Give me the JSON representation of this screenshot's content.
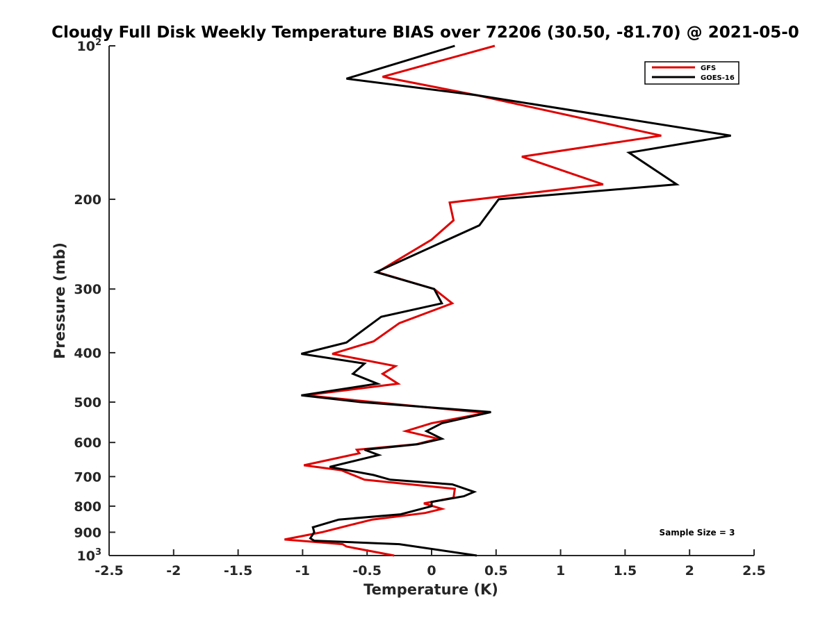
{
  "chart_data": {
    "type": "line",
    "title": "Cloudy Full Disk Weekly Temperature BIAS over 72206 (30.50, -81.70) @ 2021-05-0",
    "xlabel": "Temperature (K)",
    "ylabel": "Pressure (mb)",
    "xlim": [
      -2.5,
      2.5
    ],
    "ylim": [
      100,
      1000
    ],
    "y_scale": "log",
    "y_reversed": true,
    "grid": false,
    "legend_position": "top-right",
    "x_ticks": [
      {
        "value": -2.5,
        "label": "-2.5"
      },
      {
        "value": -2,
        "label": "-2"
      },
      {
        "value": -1.5,
        "label": "-1.5"
      },
      {
        "value": -1,
        "label": "-1"
      },
      {
        "value": -0.5,
        "label": "-0.5"
      },
      {
        "value": 0,
        "label": "0"
      },
      {
        "value": 0.5,
        "label": "0.5"
      },
      {
        "value": 1,
        "label": "1"
      },
      {
        "value": 1.5,
        "label": "1.5"
      },
      {
        "value": 2,
        "label": "2"
      },
      {
        "value": 2.5,
        "label": "2.5"
      }
    ],
    "y_ticks": [
      {
        "value": 100,
        "base": "10",
        "exp": "2"
      },
      {
        "value": 200,
        "base": "200",
        "exp": ""
      },
      {
        "value": 300,
        "base": "300",
        "exp": ""
      },
      {
        "value": 400,
        "base": "400",
        "exp": ""
      },
      {
        "value": 500,
        "base": "500",
        "exp": ""
      },
      {
        "value": 600,
        "base": "600",
        "exp": ""
      },
      {
        "value": 700,
        "base": "700",
        "exp": ""
      },
      {
        "value": 800,
        "base": "800",
        "exp": ""
      },
      {
        "value": 900,
        "base": "900",
        "exp": ""
      },
      {
        "value": 1000,
        "base": "10",
        "exp": "3"
      }
    ],
    "series": [
      {
        "name": "GFS",
        "color": "#e00000",
        "points": [
          [
            0.49,
            100
          ],
          [
            -0.38,
            115
          ],
          [
            0.35,
            125
          ],
          [
            1.78,
            150
          ],
          [
            0.7,
            165
          ],
          [
            1.33,
            187
          ],
          [
            0.14,
            203
          ],
          [
            0.17,
            220
          ],
          [
            0.0,
            240
          ],
          [
            -0.42,
            278
          ],
          [
            0.02,
            300
          ],
          [
            0.16,
            320
          ],
          [
            -0.25,
            350
          ],
          [
            -0.45,
            380
          ],
          [
            -0.77,
            402
          ],
          [
            -0.28,
            425
          ],
          [
            -0.38,
            440
          ],
          [
            -0.26,
            460
          ],
          [
            -0.98,
            485
          ],
          [
            -0.45,
            500
          ],
          [
            0.42,
            525
          ],
          [
            0.0,
            550
          ],
          [
            -0.2,
            570
          ],
          [
            0.05,
            590
          ],
          [
            -0.12,
            605
          ],
          [
            -0.58,
            620
          ],
          [
            -0.56,
            630
          ],
          [
            -0.99,
            665
          ],
          [
            -0.7,
            680
          ],
          [
            -0.52,
            710
          ],
          [
            0.18,
            740
          ],
          [
            0.17,
            770
          ],
          [
            -0.06,
            790
          ],
          [
            0.08,
            810
          ],
          [
            -0.05,
            825
          ],
          [
            -0.46,
            850
          ],
          [
            -0.62,
            870
          ],
          [
            -0.85,
            900
          ],
          [
            -1.14,
            930
          ],
          [
            -0.69,
            950
          ],
          [
            -0.66,
            960
          ],
          [
            -0.29,
            1000
          ]
        ]
      },
      {
        "name": "GOES-16",
        "color": "#000000",
        "points": [
          [
            0.18,
            100
          ],
          [
            -0.66,
            116
          ],
          [
            0.35,
            125
          ],
          [
            2.32,
            150
          ],
          [
            1.53,
            162
          ],
          [
            1.9,
            187
          ],
          [
            0.52,
            200
          ],
          [
            0.37,
            225
          ],
          [
            -0.25,
            265
          ],
          [
            -0.43,
            278
          ],
          [
            0.02,
            300
          ],
          [
            0.08,
            320
          ],
          [
            -0.39,
            340
          ],
          [
            -0.66,
            382
          ],
          [
            -1.01,
            402
          ],
          [
            -0.52,
            420
          ],
          [
            -0.61,
            440
          ],
          [
            -0.42,
            460
          ],
          [
            -1.01,
            485
          ],
          [
            -0.55,
            500
          ],
          [
            0.46,
            523
          ],
          [
            0.08,
            550
          ],
          [
            -0.04,
            570
          ],
          [
            0.08,
            590
          ],
          [
            -0.11,
            605
          ],
          [
            -0.52,
            620
          ],
          [
            -0.41,
            635
          ],
          [
            -0.79,
            670
          ],
          [
            -0.45,
            695
          ],
          [
            -0.32,
            710
          ],
          [
            0.16,
            725
          ],
          [
            0.33,
            750
          ],
          [
            0.25,
            765
          ],
          [
            0.0,
            785
          ],
          [
            0.0,
            800
          ],
          [
            -0.24,
            830
          ],
          [
            -0.72,
            850
          ],
          [
            -0.92,
            880
          ],
          [
            -0.91,
            900
          ],
          [
            -0.94,
            925
          ],
          [
            -0.91,
            935
          ],
          [
            -0.25,
            950
          ],
          [
            0.35,
            1000
          ]
        ]
      }
    ],
    "annotations": [
      {
        "text": "Sample Size = 3",
        "position": "bottom-right"
      }
    ]
  }
}
